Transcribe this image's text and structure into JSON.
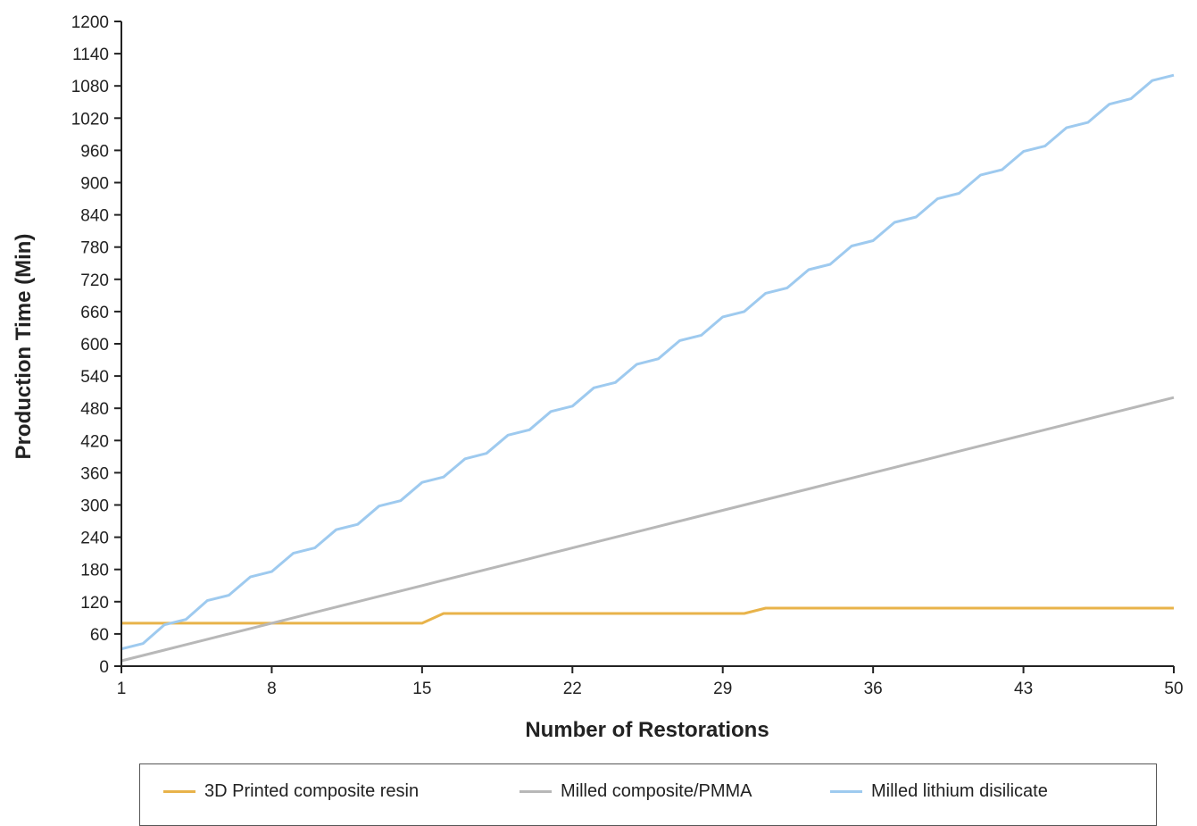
{
  "chart_data": {
    "type": "line",
    "xlabel": "Number of Restorations",
    "ylabel": "Production Time (Min)",
    "xlim": [
      1,
      50
    ],
    "ylim": [
      0,
      1200
    ],
    "x_ticks": [
      1,
      8,
      15,
      22,
      29,
      36,
      43,
      50
    ],
    "y_ticks": [
      0,
      60,
      120,
      180,
      240,
      300,
      360,
      420,
      480,
      540,
      600,
      660,
      720,
      780,
      840,
      900,
      960,
      1020,
      1080,
      1140,
      1200
    ],
    "grid": false,
    "legend": "bottom",
    "x": [
      1,
      2,
      3,
      4,
      5,
      6,
      7,
      8,
      9,
      10,
      11,
      12,
      13,
      14,
      15,
      16,
      17,
      18,
      19,
      20,
      21,
      22,
      23,
      24,
      25,
      26,
      27,
      28,
      29,
      30,
      31,
      32,
      33,
      34,
      35,
      36,
      37,
      38,
      39,
      40,
      41,
      42,
      43,
      44,
      45,
      46,
      47,
      48,
      49,
      50
    ],
    "series": [
      {
        "name": "3D Printed composite resin",
        "color": "#E8B34A",
        "values": [
          80,
          80,
          80,
          80,
          80,
          80,
          80,
          80,
          80,
          80,
          80,
          80,
          80,
          80,
          80,
          98,
          98,
          98,
          98,
          98,
          98,
          98,
          98,
          98,
          98,
          98,
          98,
          98,
          98,
          98,
          108,
          108,
          108,
          108,
          108,
          108,
          108,
          108,
          108,
          108,
          108,
          108,
          108,
          108,
          108,
          108,
          108,
          108,
          108,
          108
        ]
      },
      {
        "name": "Milled composite/PMMA",
        "color": "#B8B8B8",
        "values": [
          10,
          20,
          30,
          40,
          50,
          60,
          70,
          80,
          90,
          100,
          110,
          120,
          130,
          140,
          150,
          160,
          170,
          180,
          190,
          200,
          210,
          220,
          230,
          240,
          250,
          260,
          270,
          280,
          290,
          300,
          310,
          320,
          330,
          340,
          350,
          360,
          370,
          380,
          390,
          400,
          410,
          420,
          430,
          440,
          450,
          460,
          470,
          480,
          490,
          500
        ]
      },
      {
        "name": "Milled lithium disilicate",
        "color": "#9ECAEF",
        "values": [
          32,
          42,
          77,
          87,
          122,
          132,
          166,
          176,
          210,
          220,
          254,
          264,
          298,
          308,
          342,
          352,
          386,
          396,
          430,
          440,
          474,
          484,
          518,
          528,
          562,
          572,
          606,
          616,
          650,
          660,
          694,
          704,
          738,
          748,
          782,
          792,
          826,
          836,
          870,
          880,
          914,
          924,
          958,
          968,
          1002,
          1012,
          1046,
          1056,
          1090,
          1100
        ]
      }
    ]
  }
}
